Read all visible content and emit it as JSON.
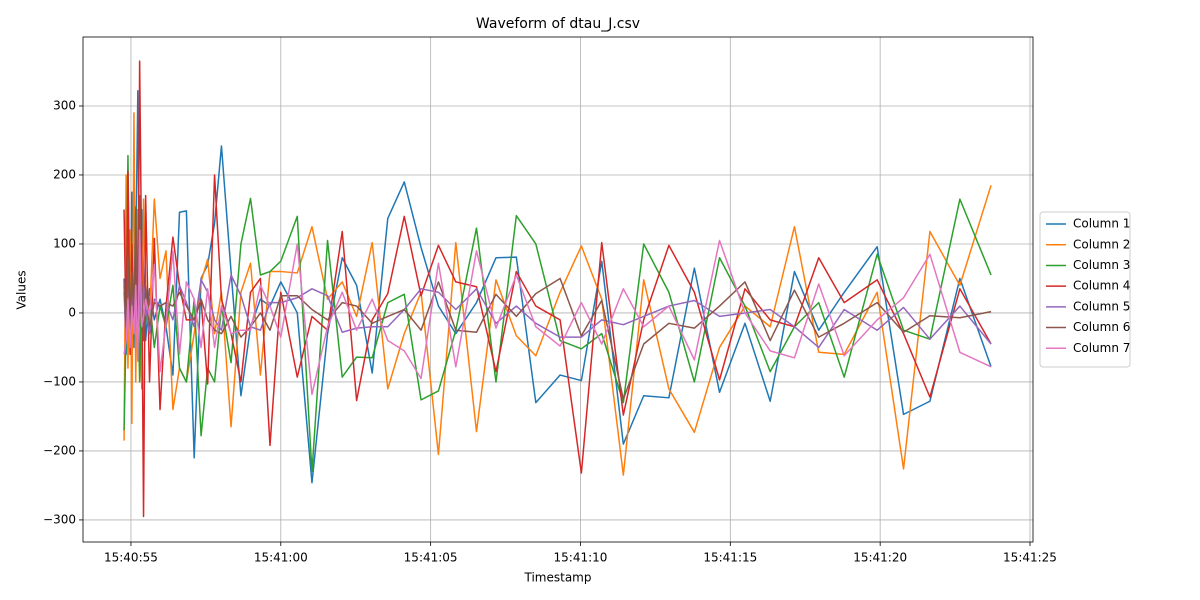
{
  "chart_data": {
    "type": "line",
    "title": "Waveform of dtau_J.csv",
    "xlabel": "Timestamp",
    "ylabel": "Values",
    "x": [
      56454.77,
      56454.84,
      56454.9,
      56454.97,
      56455.03,
      56455.1,
      56455.16,
      56455.23,
      56455.29,
      56455.36,
      56455.42,
      56455.49,
      56455.62,
      56455.78,
      56455.97,
      56456.17,
      56456.4,
      56456.62,
      56456.85,
      56457.11,
      56457.34,
      56457.56,
      56457.79,
      56458.02,
      56458.34,
      56458.67,
      56458.99,
      56459.32,
      56459.64,
      56460.0,
      56460.55,
      56461.04,
      56461.56,
      56462.05,
      56462.53,
      56463.05,
      56463.57,
      56464.12,
      56464.68,
      56465.26,
      56465.84,
      56466.53,
      56467.18,
      56467.86,
      56468.51,
      56469.32,
      56470.03,
      56470.71,
      56471.43,
      56472.11,
      56472.95,
      56473.8,
      56474.64,
      56475.49,
      56476.33,
      56477.14,
      56477.95,
      56478.8,
      56479.9,
      56480.78,
      56481.66,
      56482.66,
      56483.7
    ],
    "series": [
      {
        "name": "Column 1",
        "color": "#1f77b4",
        "values": [
          50,
          -60,
          170,
          -30,
          175,
          -50,
          80,
          322,
          -20,
          150,
          60,
          -40,
          35,
          -10,
          20,
          -20,
          -90,
          146,
          148,
          -210,
          50,
          70,
          130,
          242,
          60,
          -120,
          -20,
          20,
          10,
          45,
          0,
          -246,
          -30,
          80,
          40,
          -87,
          137,
          190,
          95,
          10,
          -30,
          15,
          80,
          81,
          -130,
          -90,
          -98,
          75,
          -190,
          -120,
          -123,
          65,
          -115,
          -15,
          -128,
          60,
          -25,
          30,
          96,
          -147,
          -128,
          50,
          -78
        ]
      },
      {
        "name": "Column 2",
        "color": "#ff7f0e",
        "values": [
          -185,
          200,
          -80,
          120,
          -160,
          290,
          -100,
          150,
          10,
          -110,
          165,
          40,
          -10,
          165,
          50,
          90,
          -140,
          -80,
          -100,
          -30,
          45,
          78,
          -30,
          30,
          -165,
          30,
          72,
          -90,
          60,
          60,
          58,
          125,
          20,
          45,
          -5,
          102,
          -110,
          -30,
          30,
          -205,
          102,
          -172,
          48,
          -33,
          -62,
          30,
          97,
          20,
          -235,
          48,
          -110,
          -173,
          -50,
          10,
          -20,
          125,
          -57,
          -60,
          30,
          -226,
          118,
          40,
          185
        ]
      },
      {
        "name": "Column 3",
        "color": "#2ca02c",
        "values": [
          -170,
          -20,
          228,
          -50,
          100,
          -20,
          154,
          30,
          -100,
          50,
          -40,
          -10,
          20,
          -50,
          10,
          -20,
          40,
          -80,
          -100,
          20,
          -178,
          -80,
          -100,
          10,
          -72,
          100,
          166,
          55,
          60,
          75,
          140,
          -230,
          105,
          -93,
          -64,
          -65,
          15,
          27,
          -126,
          -113,
          -25,
          123,
          -100,
          141,
          100,
          -40,
          -52,
          -30,
          -130,
          100,
          30,
          -100,
          80,
          10,
          -85,
          -20,
          15,
          -93,
          85,
          -25,
          -38,
          165,
          55
        ]
      },
      {
        "name": "Column 4",
        "color": "#d62728",
        "values": [
          150,
          -30,
          205,
          -60,
          100,
          -20,
          100,
          -40,
          365,
          60,
          -295,
          170,
          -100,
          108,
          -140,
          10,
          110,
          40,
          -10,
          -10,
          18,
          -103,
          200,
          20,
          -30,
          -100,
          30,
          50,
          -192,
          30,
          -93,
          -5,
          -25,
          118,
          -127,
          -10,
          28,
          140,
          25,
          98,
          45,
          38,
          -85,
          60,
          10,
          -10,
          -232,
          102,
          -148,
          -10,
          98,
          30,
          -97,
          35,
          -10,
          -20,
          80,
          15,
          48,
          -30,
          -122,
          35,
          -45
        ]
      },
      {
        "name": "Column 5",
        "color": "#9467bd",
        "values": [
          30,
          -40,
          60,
          -20,
          40,
          -30,
          20,
          -10,
          30,
          -20,
          40,
          10,
          -30,
          20,
          10,
          15,
          -10,
          40,
          15,
          -20,
          48,
          30,
          -10,
          -25,
          55,
          25,
          -20,
          -25,
          15,
          15,
          22,
          35,
          25,
          -28,
          -22,
          -20,
          -20,
          5,
          35,
          30,
          5,
          35,
          -15,
          10,
          -15,
          -35,
          -35,
          -10,
          -17,
          -5,
          10,
          18,
          -5,
          0,
          5,
          -20,
          -50,
          5,
          -25,
          8,
          -38,
          10,
          -45
        ]
      },
      {
        "name": "Column 6",
        "color": "#8c564b",
        "values": [
          40,
          -20,
          80,
          -30,
          60,
          -10,
          150,
          -20,
          170,
          20,
          -40,
          38,
          -20,
          15,
          10,
          15,
          10,
          30,
          10,
          -10,
          20,
          -10,
          -25,
          -30,
          -5,
          -35,
          -20,
          0,
          -25,
          25,
          25,
          5,
          -10,
          15,
          10,
          -15,
          -5,
          5,
          -25,
          45,
          -25,
          -28,
          27,
          -5,
          28,
          50,
          -33,
          18,
          -125,
          -45,
          -15,
          -22,
          10,
          45,
          -40,
          33,
          -35,
          -15,
          15,
          -28,
          -4,
          -7,
          2
        ]
      },
      {
        "name": "Column 7",
        "color": "#e377c2",
        "values": [
          -60,
          -40,
          20,
          -50,
          10,
          -30,
          40,
          -70,
          120,
          -20,
          -5,
          20,
          -5,
          70,
          -85,
          -15,
          90,
          -60,
          45,
          20,
          -50,
          35,
          -50,
          10,
          -30,
          -25,
          -25,
          40,
          10,
          -35,
          100,
          -118,
          -20,
          30,
          -25,
          20,
          -40,
          -55,
          -95,
          72,
          -78,
          90,
          -22,
          55,
          -20,
          -48,
          15,
          -45,
          35,
          -20,
          10,
          -68,
          105,
          0,
          -55,
          -65,
          42,
          -62,
          -10,
          22,
          85,
          -57,
          -78
        ]
      }
    ],
    "xlim": [
      56453.4,
      56485.1
    ],
    "xticks": [
      {
        "value": 56455,
        "label": "15:40:55"
      },
      {
        "value": 56460,
        "label": "15:41:00"
      },
      {
        "value": 56465,
        "label": "15:41:05"
      },
      {
        "value": 56470,
        "label": "15:41:10"
      },
      {
        "value": 56475,
        "label": "15:41:15"
      },
      {
        "value": 56480,
        "label": "15:41:20"
      },
      {
        "value": 56485,
        "label": "15:41:25"
      }
    ],
    "ylim": [
      -332,
      400
    ],
    "yticks": [
      {
        "value": -300,
        "label": "−300"
      },
      {
        "value": -200,
        "label": "−200"
      },
      {
        "value": -100,
        "label": "−100"
      },
      0,
      100,
      200,
      300
    ],
    "grid": true,
    "legend": "right"
  }
}
